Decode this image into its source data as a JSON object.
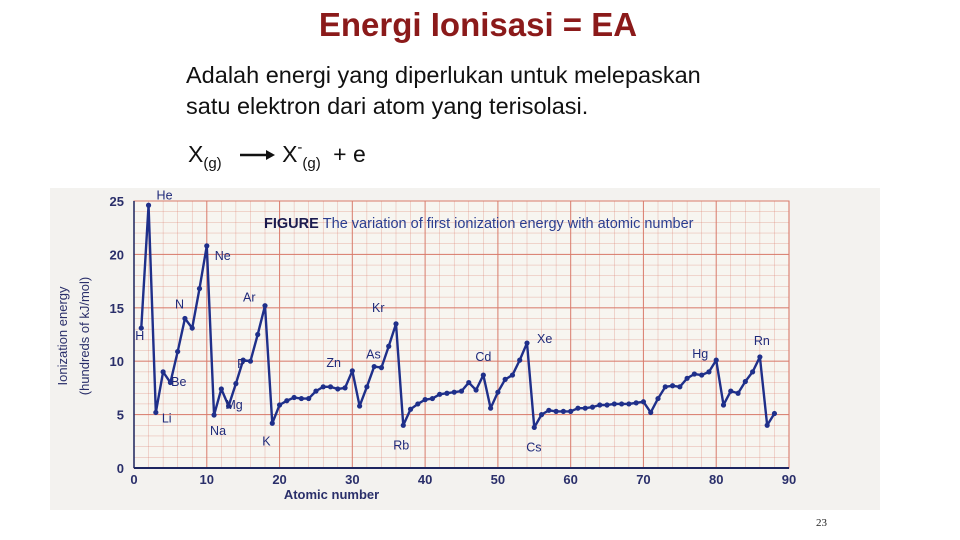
{
  "slide": {
    "title": "Energi Ionisasi = EA",
    "line1": "Adalah energi yang diperlukan untuk melepaskan",
    "line2": "satu elektron dari atom yang terisolasi.",
    "equation": {
      "lhs": "X",
      "lhs_sub": "(g)",
      "rhs": "X",
      "rhs_sup": "-",
      "rhs_sub": "(g)",
      "tail": "+ e"
    },
    "page_number": "23"
  },
  "colors": {
    "title": "#8b1a1a",
    "series": "#1f2f8a",
    "grid": "#d97a6a",
    "caption": "#2b3d8f"
  },
  "chart_data": {
    "type": "line",
    "caption_label": "FIGURE",
    "caption_text": "The variation of first ionization energy with atomic number",
    "xlabel": "Atomic number",
    "ylabel_line1": "Ionization energy",
    "ylabel_line2": "(hundreds of kJ/mol)",
    "xlim": [
      0,
      90
    ],
    "ylim": [
      0,
      25
    ],
    "xticks": [
      0,
      10,
      20,
      30,
      40,
      50,
      60,
      70,
      80,
      90
    ],
    "yticks": [
      0,
      5,
      10,
      15,
      20,
      25
    ],
    "grid": true,
    "series": [
      {
        "x": [
          1,
          2,
          3,
          4,
          5,
          6,
          7,
          8,
          9,
          10,
          11,
          12,
          13,
          14,
          15,
          16,
          17,
          18,
          19,
          20,
          21,
          22,
          23,
          24,
          25,
          26,
          27,
          28,
          29,
          30,
          31,
          32,
          33,
          34,
          35,
          36,
          37,
          38,
          39,
          40,
          41,
          42,
          43,
          44,
          45,
          46,
          47,
          48,
          49,
          50,
          51,
          52,
          53,
          54,
          55,
          56,
          57,
          58,
          59,
          60,
          61,
          62,
          63,
          64,
          65,
          66,
          67,
          68,
          69,
          70,
          71,
          72,
          73,
          74,
          75,
          76,
          77,
          78,
          79,
          80,
          81,
          82,
          83,
          84,
          85,
          86,
          87,
          88
        ],
        "values": [
          13.1,
          24.6,
          5.2,
          9.0,
          8.0,
          10.9,
          14.0,
          13.1,
          16.8,
          20.8,
          4.96,
          7.4,
          5.8,
          7.9,
          10.1,
          10.0,
          12.5,
          15.2,
          4.19,
          5.9,
          6.3,
          6.6,
          6.5,
          6.5,
          7.2,
          7.6,
          7.6,
          7.4,
          7.5,
          9.1,
          5.8,
          7.6,
          9.5,
          9.4,
          11.4,
          13.5,
          4.0,
          5.5,
          6.0,
          6.4,
          6.5,
          6.9,
          7.0,
          7.1,
          7.2,
          8.0,
          7.3,
          8.7,
          5.6,
          7.1,
          8.3,
          8.7,
          10.1,
          11.7,
          3.8,
          5.0,
          5.4,
          5.3,
          5.3,
          5.3,
          5.6,
          5.6,
          5.7,
          5.9,
          5.9,
          6.0,
          6.0,
          6.0,
          6.1,
          6.2,
          5.2,
          6.5,
          7.6,
          7.7,
          7.6,
          8.4,
          8.8,
          8.7,
          9.0,
          10.1,
          5.9,
          7.2,
          7.0,
          8.1,
          9.0,
          10.4,
          4.0,
          5.1
        ]
      }
    ],
    "annotations": [
      {
        "text": "H",
        "x": 1
      },
      {
        "text": "He",
        "x": 2
      },
      {
        "text": "Li",
        "x": 3
      },
      {
        "text": "Be",
        "x": 4
      },
      {
        "text": "N",
        "x": 7
      },
      {
        "text": "Ne",
        "x": 10
      },
      {
        "text": "Na",
        "x": 11
      },
      {
        "text": "Mg",
        "x": 12
      },
      {
        "text": "P",
        "x": 15
      },
      {
        "text": "Ar",
        "x": 18
      },
      {
        "text": "K",
        "x": 19
      },
      {
        "text": "Zn",
        "x": 30
      },
      {
        "text": "As",
        "x": 33
      },
      {
        "text": "Kr",
        "x": 36
      },
      {
        "text": "Rb",
        "x": 37
      },
      {
        "text": "Cd",
        "x": 48
      },
      {
        "text": "Xe",
        "x": 54
      },
      {
        "text": "Cs",
        "x": 55
      },
      {
        "text": "Hg",
        "x": 80
      },
      {
        "text": "Rn",
        "x": 86
      }
    ]
  }
}
